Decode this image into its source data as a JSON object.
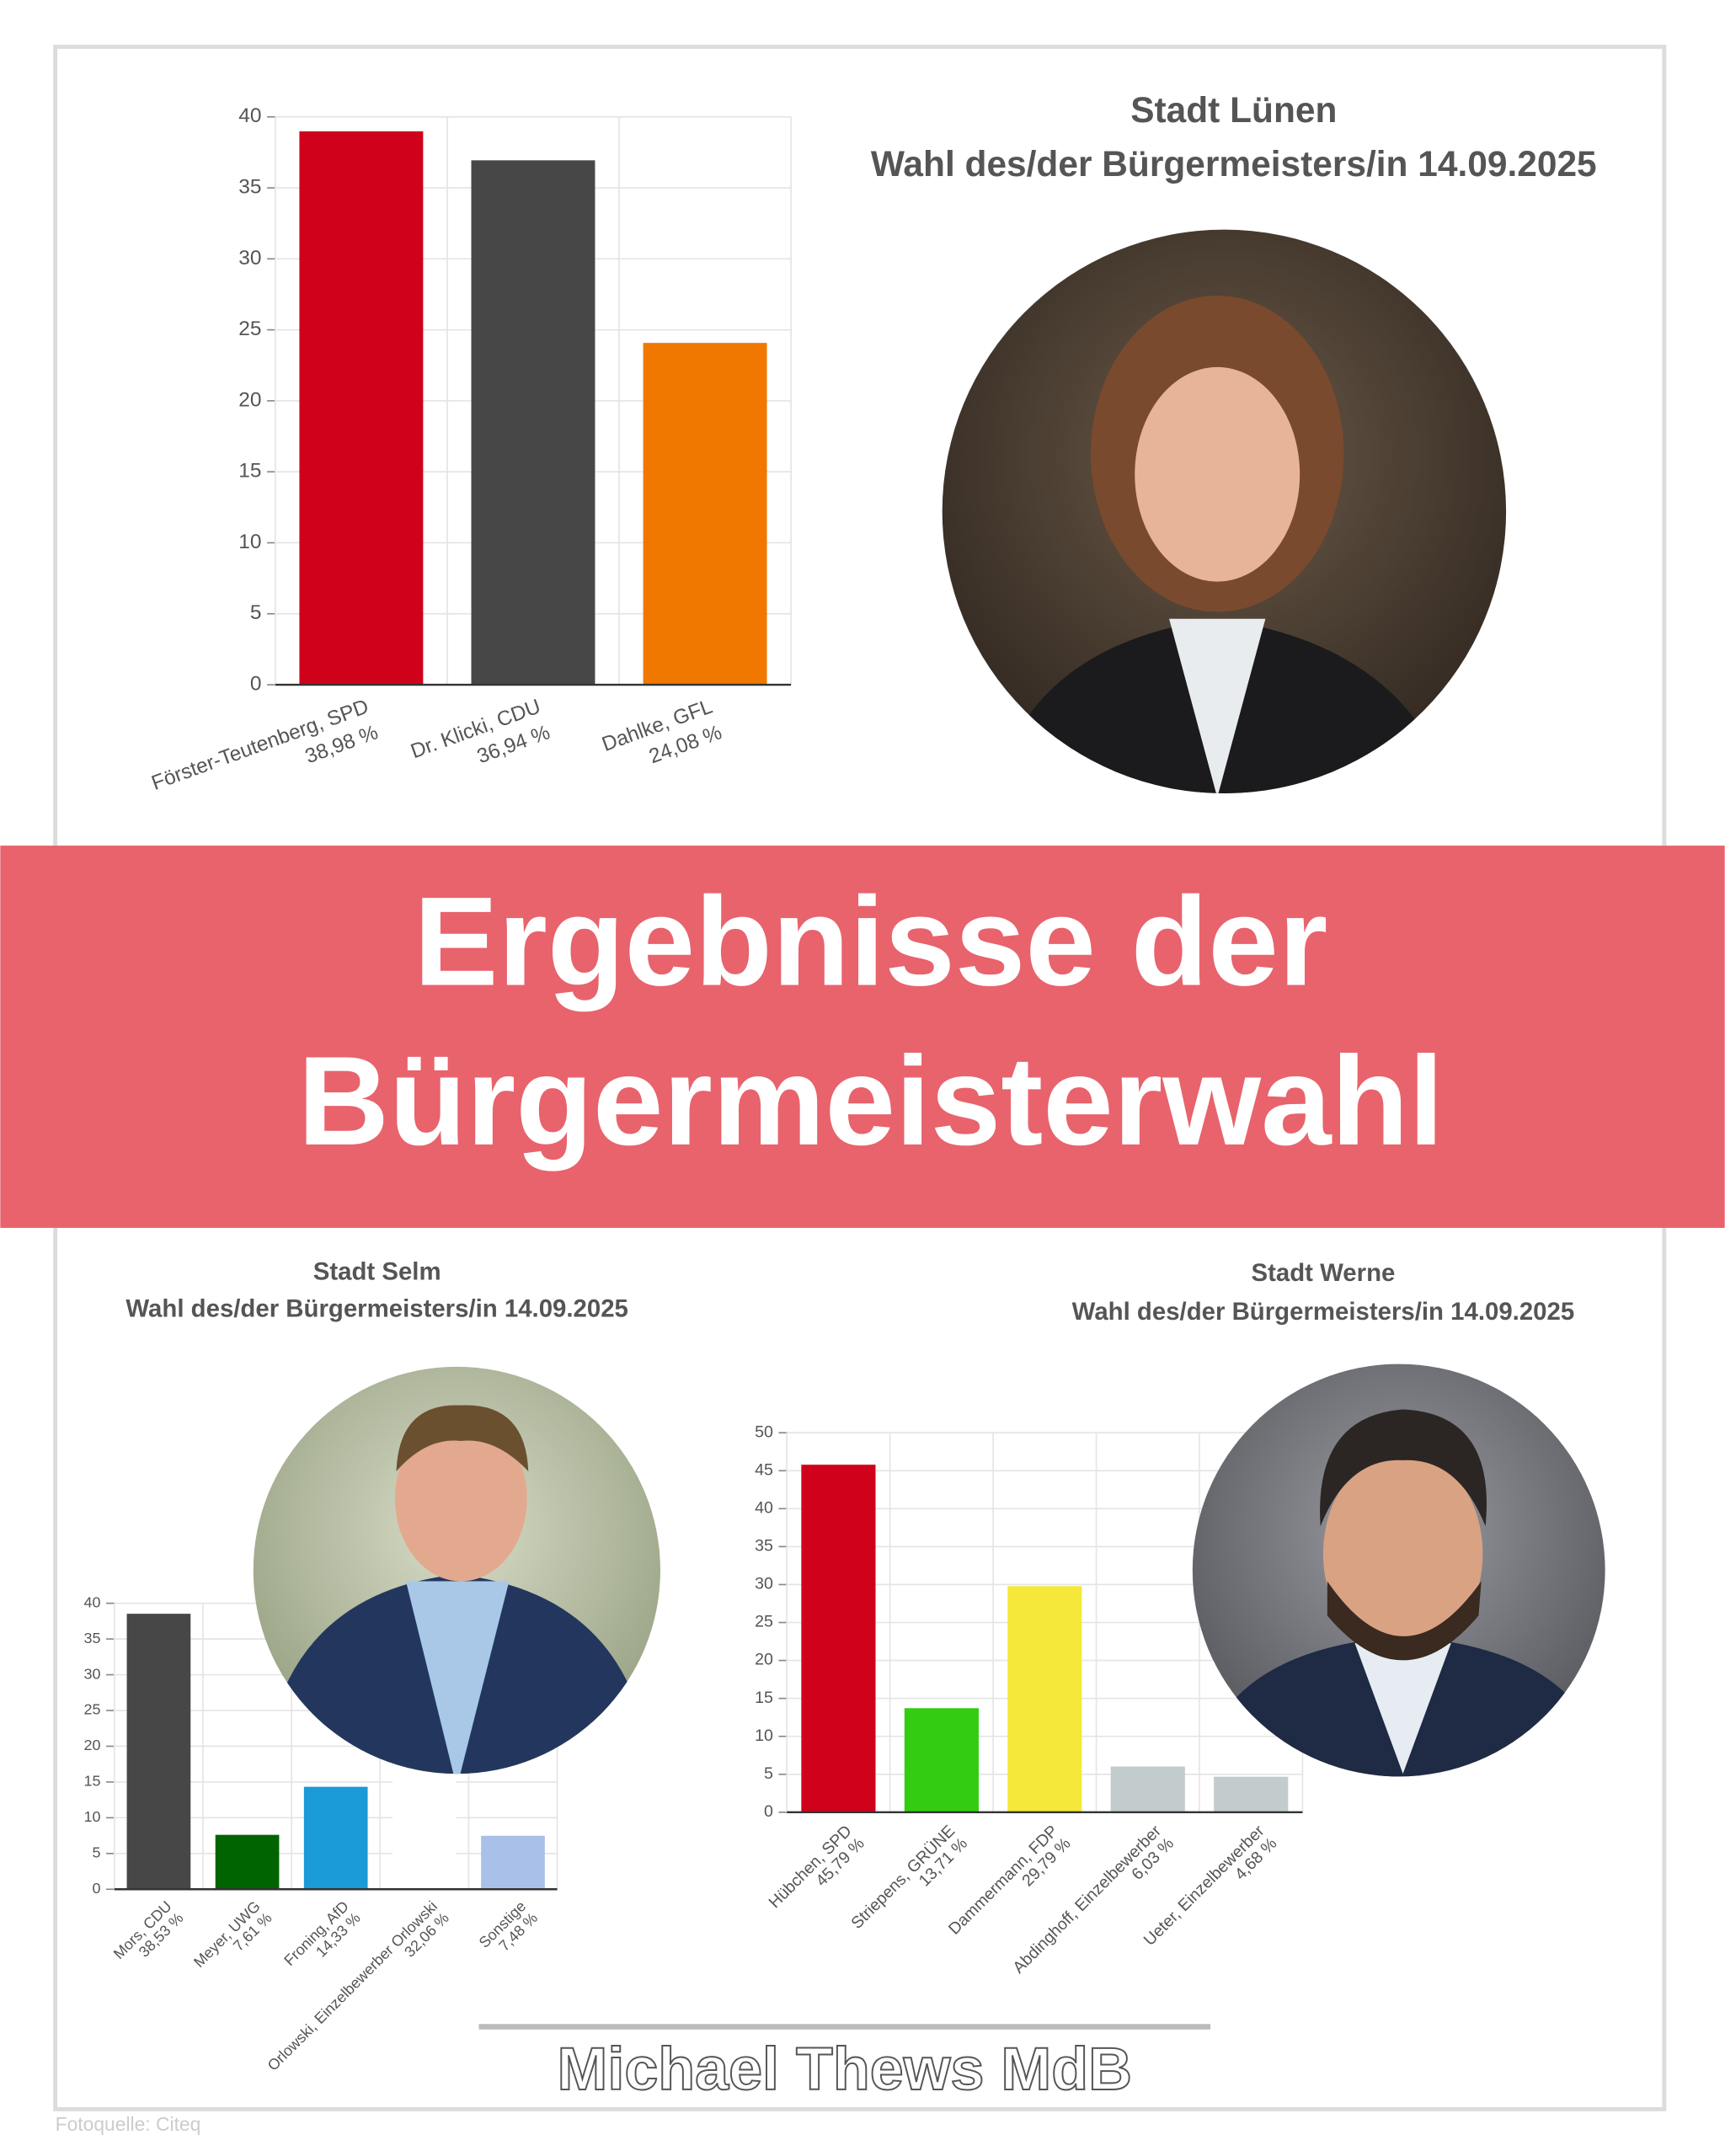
{
  "chart_data": [
    {
      "type": "bar",
      "title": "Stadt Lünen",
      "subtitle": "Wahl des/der Bürgermeisters/in 14.09.2025",
      "categories": [
        "Förster-Teutenberg, SPD",
        "Dr. Klicki, CDU",
        "Dahlke, GFL"
      ],
      "values": [
        38.98,
        36.94,
        24.08
      ],
      "value_labels": [
        "38,98 %",
        "36,94 %",
        "24,08 %"
      ],
      "colors": [
        "#d0021b",
        "#474747",
        "#f07800"
      ],
      "ylim": [
        0,
        40
      ],
      "yticks": [
        0,
        5,
        10,
        15,
        20,
        25,
        30,
        35,
        40
      ],
      "grid": true
    },
    {
      "type": "bar",
      "title": "Stadt Selm",
      "subtitle": "Wahl des/der Bürgermeisters/in 14.09.2025",
      "categories": [
        "Mors, CDU",
        "Meyer, UWG",
        "Froning, AfD",
        "Orlowski, Einzelbewerber Orlowski",
        "Sonstige"
      ],
      "values": [
        38.53,
        7.61,
        14.33,
        32.06,
        7.48
      ],
      "value_labels": [
        "38,53 %",
        "7,61 %",
        "14,33 %",
        "32,06 %",
        "7,48 %"
      ],
      "colors": [
        "#474747",
        "#006400",
        "#1a9ad6",
        "#ffffff",
        "#a9c0e8"
      ],
      "ylim": [
        0,
        40
      ],
      "yticks": [
        0,
        5,
        10,
        15,
        20,
        25,
        30,
        35,
        40
      ],
      "grid": true
    },
    {
      "type": "bar",
      "title": "Stadt Werne",
      "subtitle": "Wahl des/der Bürgermeisters/in 14.09.2025",
      "categories": [
        "Hübchen, SPD",
        "Striepens, GRÜNE",
        "Dammermann, FDP",
        "Abdinghoff, Einzelbewerber",
        "Ueter, Einzelbewerber"
      ],
      "values": [
        45.79,
        13.71,
        29.79,
        6.03,
        4.68
      ],
      "value_labels": [
        "45,79 %",
        "13,71 %",
        "29,79 %",
        "6,03 %",
        "4,68 %"
      ],
      "colors": [
        "#d0021b",
        "#33cc11",
        "#f6e83a",
        "#c3cccc",
        "#c3cccc"
      ],
      "ylim": [
        0,
        50
      ],
      "yticks": [
        0,
        5,
        10,
        15,
        20,
        25,
        30,
        35,
        40,
        45,
        50
      ],
      "grid": true
    }
  ],
  "banner": {
    "lines": [
      "Ergebnisse der",
      "Bürgermeisterwahl"
    ]
  },
  "footer": {
    "author": "Michael Thews MdB",
    "photo_credit": "Fotoquelle: Citeq"
  }
}
